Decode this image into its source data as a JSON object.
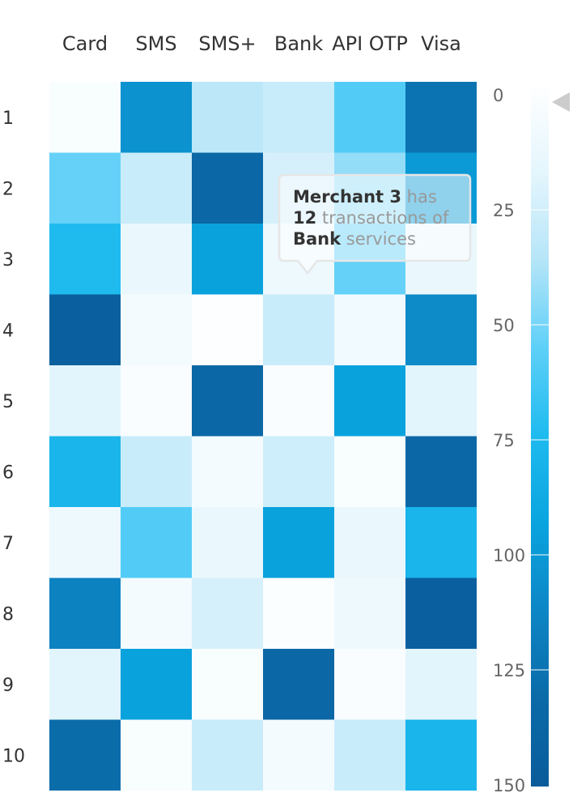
{
  "chart_data": {
    "type": "heatmap",
    "title": "",
    "xlabel": "",
    "ylabel": "",
    "x_categories": [
      "Card",
      "SMS",
      "SMS+",
      "Bank",
      "API OTP",
      "Visa"
    ],
    "y_categories": [
      "1",
      "2",
      "3",
      "4",
      "5",
      "6",
      "7",
      "8",
      "9",
      "10"
    ],
    "values": [
      [
        5,
        105,
        35,
        30,
        60,
        125
      ],
      [
        55,
        30,
        135,
        25,
        45,
        100
      ],
      [
        75,
        15,
        95,
        12,
        55,
        15
      ],
      [
        145,
        8,
        2,
        30,
        10,
        110
      ],
      [
        20,
        4,
        135,
        4,
        95,
        20
      ],
      [
        80,
        30,
        8,
        28,
        5,
        135
      ],
      [
        12,
        60,
        15,
        95,
        15,
        80
      ],
      [
        115,
        8,
        25,
        3,
        12,
        145
      ],
      [
        20,
        95,
        5,
        135,
        4,
        20
      ],
      [
        130,
        5,
        30,
        8,
        30,
        80
      ]
    ],
    "colorbar": {
      "min": 0,
      "max": 150,
      "ticks": [
        0,
        25,
        50,
        75,
        100,
        125,
        150
      ],
      "colors": [
        "#ffffff",
        "#e5f6fd",
        "#b6e5f8",
        "#5fd0f8",
        "#1fbbef",
        "#0aa4df",
        "#0d86c5",
        "#0b6aa8",
        "#0a5c9a"
      ],
      "pointer_value": 0
    },
    "tooltip": {
      "merchant": "Merchant 3",
      "has_word": "has",
      "count": "12",
      "transactions_of": "transactions of",
      "service": "Bank",
      "services_word": "services"
    }
  }
}
